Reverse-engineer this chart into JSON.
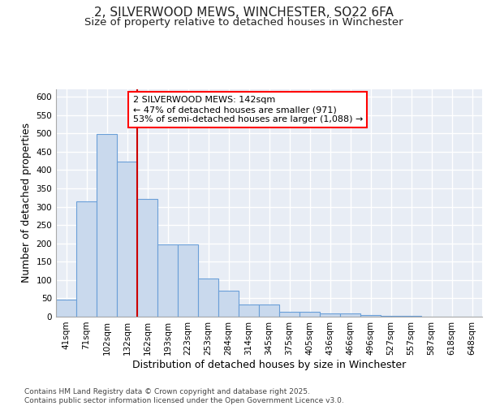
{
  "title_line1": "2, SILVERWOOD MEWS, WINCHESTER, SO22 6FA",
  "title_line2": "Size of property relative to detached houses in Winchester",
  "xlabel": "Distribution of detached houses by size in Winchester",
  "ylabel": "Number of detached properties",
  "annotation_line1": "2 SILVERWOOD MEWS: 142sqm",
  "annotation_line2": "← 47% of detached houses are smaller (971)",
  "annotation_line3": "53% of semi-detached houses are larger (1,088) →",
  "bar_color": "#c9d9ed",
  "bar_edge_color": "#6a9fd8",
  "background_color": "#e8edf5",
  "grid_color": "#ffffff",
  "vline_color": "#cc0000",
  "categories": [
    "41sqm",
    "71sqm",
    "102sqm",
    "132sqm",
    "162sqm",
    "193sqm",
    "223sqm",
    "253sqm",
    "284sqm",
    "314sqm",
    "345sqm",
    "375sqm",
    "405sqm",
    "436sqm",
    "466sqm",
    "496sqm",
    "527sqm",
    "557sqm",
    "587sqm",
    "618sqm",
    "648sqm"
  ],
  "values": [
    47,
    314,
    498,
    424,
    320,
    196,
    196,
    105,
    70,
    33,
    33,
    14,
    14,
    8,
    8,
    5,
    3,
    2,
    1,
    1,
    1
  ],
  "ylim": [
    0,
    620
  ],
  "yticks": [
    0,
    50,
    100,
    150,
    200,
    250,
    300,
    350,
    400,
    450,
    500,
    550,
    600
  ],
  "vline_x": 3.5,
  "footer": "Contains HM Land Registry data © Crown copyright and database right 2025.\nContains public sector information licensed under the Open Government Licence v3.0.",
  "title_fontsize": 11,
  "subtitle_fontsize": 9.5,
  "axis_label_fontsize": 9,
  "tick_fontsize": 7.5,
  "annotation_fontsize": 8,
  "footer_fontsize": 6.5
}
